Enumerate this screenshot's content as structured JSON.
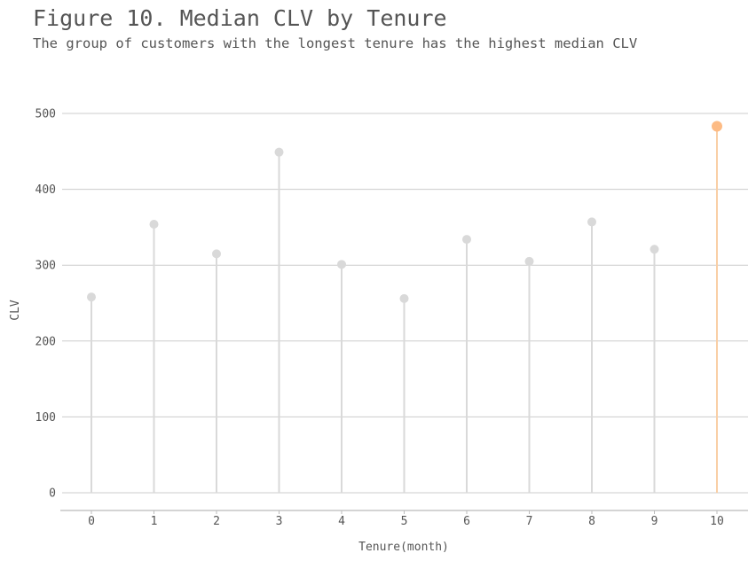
{
  "title": "Figure 10. Median CLV by Tenure",
  "subtitle": "The group of customers with the longest tenure has the highest median CLV",
  "colors": {
    "default_mark": "#d9d9d9",
    "highlight_mark": "#fdbb84",
    "highlight_stem": "#f9cfa6",
    "grid": "#cccccc",
    "text": "#555555"
  },
  "chart_data": {
    "type": "lollipop",
    "x": [
      0,
      1,
      2,
      3,
      4,
      5,
      6,
      7,
      8,
      9,
      10
    ],
    "values": [
      258,
      354,
      315,
      449,
      301,
      256,
      334,
      305,
      357,
      321,
      483
    ],
    "highlight_index": 10,
    "xlabel": "Tenure(month)",
    "ylabel": "CLV",
    "ylim": [
      0,
      500
    ],
    "yticks": [
      0,
      100,
      200,
      300,
      400,
      500
    ],
    "xticks": [
      "0",
      "1",
      "2",
      "3",
      "4",
      "5",
      "6",
      "7",
      "8",
      "9",
      "10"
    ],
    "grid": "horizontal",
    "legend": "none"
  }
}
